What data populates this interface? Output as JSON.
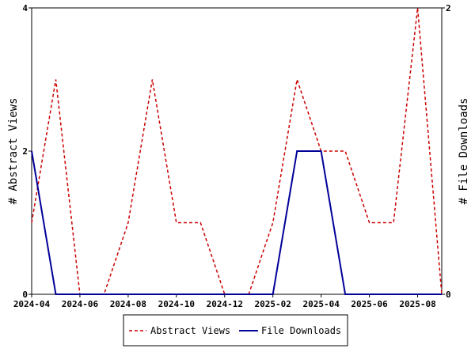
{
  "chart_data": {
    "type": "line",
    "x": [
      "2024-04",
      "2024-05",
      "2024-06",
      "2024-07",
      "2024-08",
      "2024-09",
      "2024-10",
      "2024-11",
      "2024-12",
      "2025-01",
      "2025-02",
      "2025-03",
      "2025-04",
      "2025-05",
      "2025-06",
      "2025-07",
      "2025-08",
      "2025-09"
    ],
    "x_tick_labels": [
      "2024-04",
      "2024-06",
      "2024-08",
      "2024-10",
      "2024-12",
      "2025-02",
      "2025-04",
      "2025-06",
      "2025-08"
    ],
    "series": [
      {
        "name": "Abstract Views",
        "axis": "left",
        "color": "#cc0000",
        "style": "dashed",
        "values": [
          1,
          3,
          0,
          0,
          1,
          3,
          1,
          1,
          0,
          0,
          1,
          3,
          2,
          2,
          1,
          1,
          4,
          0
        ]
      },
      {
        "name": "File Downloads",
        "axis": "right",
        "color": "#000099",
        "style": "solid",
        "values": [
          1,
          0,
          0,
          0,
          0,
          0,
          0,
          0,
          0,
          0,
          0,
          1,
          1,
          0,
          0,
          0,
          0,
          0
        ]
      }
    ],
    "ylabel": "# Abstract Views",
    "y2label": "# File Downloads",
    "ylim": [
      0,
      4
    ],
    "y2lim": [
      0,
      2
    ],
    "yticks": [
      "0",
      "2",
      "4"
    ],
    "y2ticks": [
      "0",
      "2"
    ],
    "grid": false,
    "legend_position": "bottom"
  }
}
